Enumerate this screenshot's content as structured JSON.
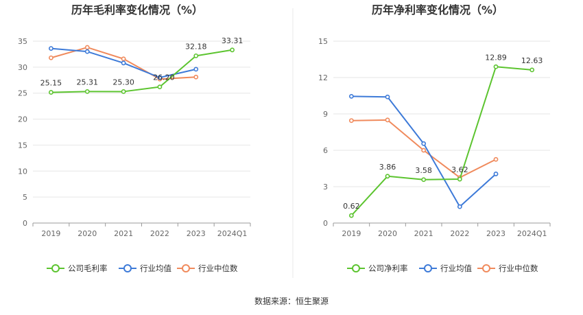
{
  "source_label": "数据来源：恒生聚源",
  "chart_data": [
    {
      "type": "line",
      "title": "历年毛利率变化情况（%）",
      "categories": [
        "2019",
        "2020",
        "2021",
        "2022",
        "2023",
        "2024Q1"
      ],
      "ylim": [
        0,
        35
      ],
      "yticks": [
        0,
        5,
        10,
        15,
        20,
        25,
        30,
        35
      ],
      "grid": true,
      "legend_position": "bottom",
      "series": [
        {
          "name": "公司毛利率",
          "color": "#5cc42f",
          "labeled": true,
          "values": [
            25.15,
            25.31,
            25.3,
            26.2,
            32.18,
            33.31
          ],
          "labels": [
            "25.15",
            "25.31",
            "25.30",
            "26.20",
            "32.18",
            "33.31"
          ]
        },
        {
          "name": "行业均值",
          "color": "#3d7ad8",
          "labeled": false,
          "values": [
            33.6,
            33.0,
            30.8,
            28.0,
            29.6,
            null
          ]
        },
        {
          "name": "行业中位数",
          "color": "#f08a5c",
          "labeled": false,
          "values": [
            31.8,
            33.8,
            31.6,
            27.7,
            28.1,
            null
          ]
        }
      ]
    },
    {
      "type": "line",
      "title": "历年净利率变化情况（%）",
      "categories": [
        "2019",
        "2020",
        "2021",
        "2022",
        "2023",
        "2024Q1"
      ],
      "ylim": [
        0,
        15
      ],
      "yticks": [
        0,
        3,
        6,
        9,
        12,
        15
      ],
      "grid": true,
      "legend_position": "bottom",
      "series": [
        {
          "name": "公司净利率",
          "color": "#5cc42f",
          "labeled": true,
          "values": [
            0.62,
            3.86,
            3.58,
            3.62,
            12.89,
            12.63
          ],
          "labels": [
            "0.62",
            "3.86",
            "3.58",
            "3.62",
            "12.89",
            "12.63"
          ]
        },
        {
          "name": "行业均值",
          "color": "#3d7ad8",
          "labeled": false,
          "values": [
            10.45,
            10.4,
            6.55,
            1.35,
            4.05,
            null
          ]
        },
        {
          "name": "行业中位数",
          "color": "#f08a5c",
          "labeled": false,
          "values": [
            8.45,
            8.5,
            6.0,
            3.75,
            5.25,
            null
          ]
        }
      ]
    }
  ]
}
